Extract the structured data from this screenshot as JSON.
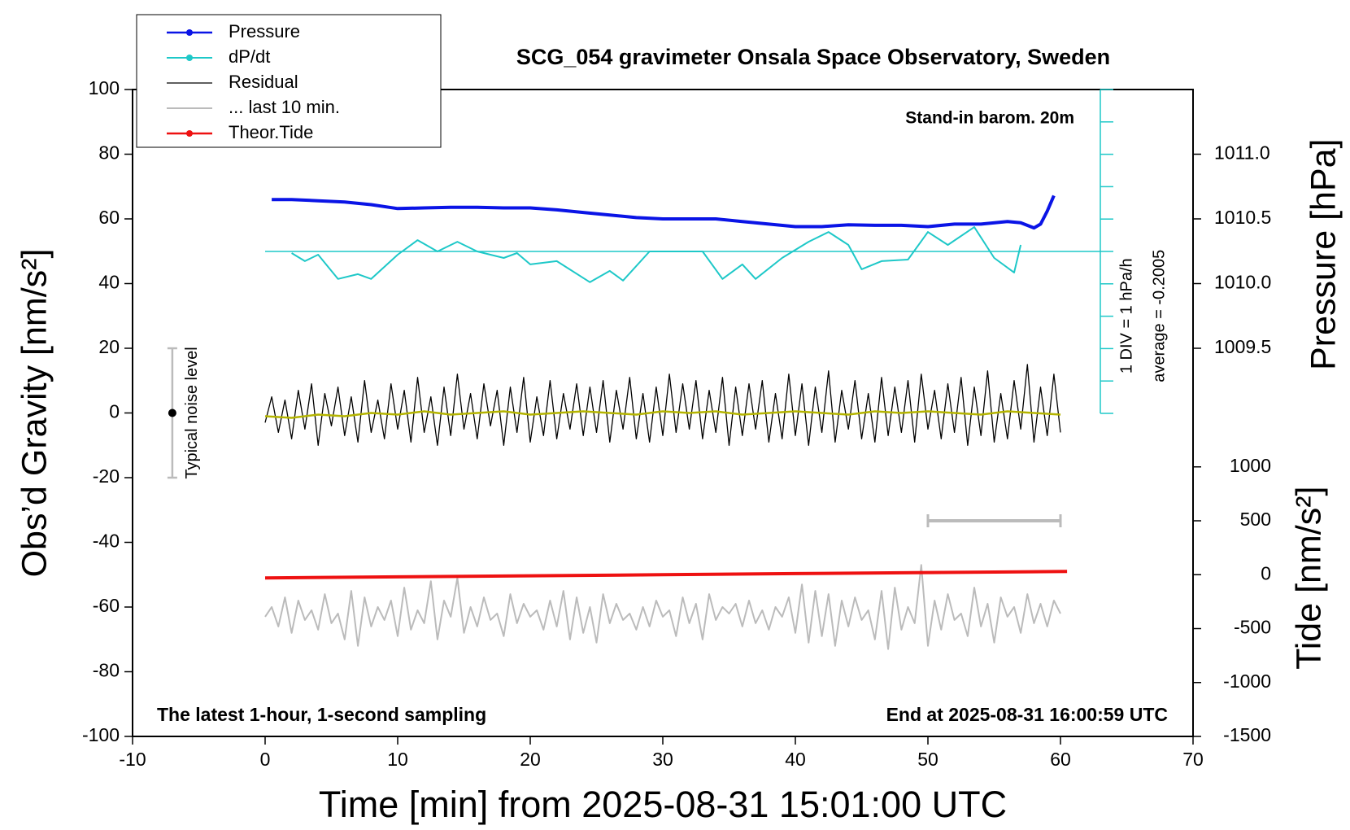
{
  "chart_data": {
    "type": "line",
    "title": "SCG_054 gravimeter Onsala Space Observatory, Sweden",
    "x_label": "Time [min] from 2025-08-31 15:01:00 UTC",
    "y_label": "Obs’d Gravity [nm/s²]",
    "y2_label": "Pressure [hPa]",
    "y3_label": "Tide [nm/s²]",
    "annotations": {
      "barometer": "Stand-in barom. 20m",
      "div": "1 DIV = 1 hPa/h",
      "average": "average = -0.2005",
      "sampling": "The latest 1-hour, 1-second sampling",
      "end": "End at 2025-08-31 16:00:59 UTC"
    },
    "legend": "upper left",
    "xlim": [
      -10,
      70
    ],
    "xticks": [
      -10,
      0,
      10,
      20,
      30,
      40,
      50,
      60,
      70
    ],
    "ylim": [
      -100,
      100
    ],
    "yticks": [
      -100,
      -80,
      -60,
      -40,
      -20,
      0,
      20,
      40,
      60,
      80,
      100
    ],
    "y2lim": [
      1006.5,
      1011.5
    ],
    "y2ticks": [
      1009.5,
      {
        "value": 1010,
        "label": "1010.0"
      },
      1010.5,
      {
        "value": 1011,
        "label": "1011.0"
      }
    ],
    "y3lim": [
      -1500,
      4500
    ],
    "y3ticks": [
      -1500,
      -1000,
      -500,
      0,
      500,
      1000
    ],
    "y4lim": [
      -5,
      5
    ],
    "y4ticks": [
      -5,
      -4,
      -3,
      -2,
      -1,
      0,
      1,
      2,
      3,
      4,
      5
    ],
    "x": [
      0,
      0.5,
      1,
      1.5,
      2,
      2.5,
      3,
      3.5,
      4,
      4.5,
      5,
      5.5,
      6,
      6.5,
      7,
      7.5,
      8,
      8.5,
      9,
      9.5,
      10,
      10.5,
      11,
      11.5,
      12,
      12.5,
      13,
      13.5,
      14,
      14.5,
      15,
      15.5,
      16,
      16.5,
      17,
      17.5,
      18,
      18.5,
      19,
      19.5,
      20,
      20.5,
      21,
      21.5,
      22,
      22.5,
      23,
      23.5,
      24,
      24.5,
      25,
      25.5,
      26,
      26.5,
      27,
      27.5,
      28,
      28.5,
      29,
      29.5,
      30,
      30.5,
      31,
      31.5,
      32,
      32.5,
      33,
      33.5,
      34,
      34.5,
      35,
      35.5,
      36,
      36.5,
      37,
      37.5,
      38,
      38.5,
      39,
      39.5,
      40,
      40.5,
      41,
      41.5,
      42,
      42.5,
      43,
      43.5,
      44,
      44.5,
      45,
      45.5,
      46,
      46.5,
      47,
      47.5,
      48,
      48.5,
      49,
      49.5,
      50,
      50.5,
      51,
      51.5,
      52,
      52.5,
      53,
      53.5,
      54,
      54.5,
      55,
      55.5,
      56,
      56.5,
      57,
      57.5,
      58,
      58.5,
      59,
      59.5,
      60
    ],
    "series": [
      {
        "name": "Pressure",
        "color": "#0a14e6",
        "axis": "y2",
        "marker": true,
        "width": 4,
        "x": [
          0.5,
          2,
          4,
          6,
          8,
          10,
          12,
          14,
          16,
          18,
          20,
          22,
          24,
          26,
          28,
          30,
          32,
          34,
          36,
          38,
          40,
          42,
          44,
          46,
          48,
          50,
          52,
          54,
          56,
          57,
          58,
          58.5,
          59,
          59.5
        ],
        "values": [
          1010.65,
          1010.65,
          1010.64,
          1010.63,
          1010.61,
          1010.58,
          1010.585,
          1010.59,
          1010.59,
          1010.585,
          1010.585,
          1010.57,
          1010.55,
          1010.53,
          1010.51,
          1010.5,
          1010.5,
          1010.5,
          1010.48,
          1010.46,
          1010.44,
          1010.44,
          1010.455,
          1010.45,
          1010.45,
          1010.44,
          1010.46,
          1010.46,
          1010.48,
          1010.47,
          1010.43,
          1010.46,
          1010.56,
          1010.68
        ]
      },
      {
        "name": "dP/dt",
        "color": "#1ec8c8",
        "axis": "y4",
        "marker": true,
        "width": 2,
        "x": [
          2,
          3,
          4,
          5.5,
          7,
          8,
          10,
          11.5,
          13,
          14.5,
          16,
          18,
          19,
          20,
          22,
          24.5,
          26,
          27,
          29,
          31,
          33,
          34.5,
          36,
          37,
          39,
          41,
          42.5,
          44,
          45,
          46.5,
          48.5,
          50,
          51.5,
          53.5,
          55,
          56.5,
          57
        ],
        "values": [
          -0.05,
          -0.3,
          -0.1,
          -0.85,
          -0.7,
          -0.85,
          -0.1,
          0.35,
          0,
          0.3,
          0,
          -0.2,
          -0.05,
          -0.4,
          -0.3,
          -0.95,
          -0.6,
          -0.9,
          0,
          0,
          0,
          -0.85,
          -0.4,
          -0.85,
          -0.2,
          0.3,
          0.6,
          0.2,
          -0.55,
          -0.3,
          -0.25,
          0.6,
          0.2,
          0.75,
          -0.2,
          -0.65,
          0.2
        ]
      },
      {
        "name": "Residual",
        "color": "#000000",
        "width": 1.3,
        "values": [
          -3,
          5,
          -6,
          4,
          -8,
          7,
          -5,
          9,
          -10,
          6,
          -4,
          8,
          -7,
          5,
          -9,
          10,
          -6,
          4,
          -8,
          9,
          -5,
          7,
          -9,
          11,
          -6,
          5,
          -10,
          8,
          -7,
          12,
          -5,
          6,
          -8,
          9,
          -4,
          7,
          -10,
          8,
          -6,
          11,
          -9,
          5,
          -7,
          10,
          -8,
          6,
          -5,
          9,
          -7,
          8,
          -6,
          10,
          -9,
          7,
          -5,
          11,
          -8,
          6,
          -9,
          8,
          -7,
          12,
          -6,
          9,
          -5,
          10,
          -8,
          7,
          -6,
          11,
          -10,
          8,
          -7,
          9,
          -5,
          10,
          -9,
          6,
          -8,
          12,
          -7,
          9,
          -10,
          8,
          -6,
          13,
          -9,
          7,
          -5,
          10,
          -8,
          6,
          -9,
          11,
          -7,
          8,
          -6,
          10,
          -9,
          12,
          -5,
          7,
          -8,
          9,
          -6,
          11,
          -10,
          8,
          -7,
          13,
          -9,
          6,
          -8,
          10,
          -5,
          15,
          -9,
          8,
          -7,
          12,
          -6
        ]
      },
      {
        "name": "... last 10 min.",
        "color": "#bbbbbb",
        "width": 2,
        "values": [
          -63,
          -60,
          -66,
          -57,
          -68,
          -58,
          -64,
          -61,
          -67,
          -56,
          -65,
          -62,
          -70,
          -55,
          -72,
          -57,
          -66,
          -60,
          -64,
          -58,
          -69,
          -54,
          -67,
          -61,
          -65,
          -52,
          -70,
          -58,
          -63,
          -51,
          -68,
          -60,
          -66,
          -57,
          -64,
          -62,
          -69,
          -56,
          -65,
          -59,
          -63,
          -61,
          -67,
          -58,
          -66,
          -55,
          -70,
          -57,
          -68,
          -60,
          -71,
          -56,
          -65,
          -59,
          -64,
          -62,
          -67,
          -60,
          -66,
          -58,
          -63,
          -61,
          -69,
          -57,
          -65,
          -59,
          -70,
          -56,
          -64,
          -60,
          -62,
          -59,
          -66,
          -58,
          -65,
          -61,
          -67,
          -60,
          -63,
          -57,
          -68,
          -53,
          -71,
          -55,
          -69,
          -56,
          -72,
          -58,
          -66,
          -57,
          -64,
          -61,
          -70,
          -55,
          -73,
          -54,
          -67,
          -60,
          -65,
          -47,
          -72,
          -58,
          -67,
          -56,
          -64,
          -62,
          -69,
          -54,
          -66,
          -59,
          -71,
          -57,
          -63,
          -60,
          -68,
          -56,
          -65,
          -59,
          -66,
          -58,
          -62
        ]
      },
      {
        "name": "Theor.Tide",
        "color": "#ee1111",
        "axis": "y3",
        "marker": true,
        "width": 4,
        "x": [
          0,
          10,
          20,
          30,
          40,
          50,
          60.5
        ],
        "values": [
          -30,
          -20,
          -10,
          0,
          10,
          20,
          30
        ]
      },
      {
        "color": "#b4b400",
        "width": 2.5,
        "x": [
          0,
          2,
          4,
          6,
          8,
          10,
          12,
          14,
          16,
          18,
          20,
          22,
          24,
          26,
          28,
          30,
          32,
          34,
          36,
          38,
          40,
          42,
          44,
          46,
          48,
          50,
          52,
          54,
          56,
          58,
          60
        ],
        "values": [
          -1,
          -1.5,
          -0.5,
          -1,
          0,
          -0.5,
          0.5,
          -0.5,
          0,
          0.5,
          -0.5,
          0,
          0.5,
          0,
          -0.5,
          0.5,
          0,
          0.5,
          -0.5,
          0,
          0.5,
          0,
          -0.5,
          0.5,
          0,
          0.5,
          0,
          -0.5,
          0.5,
          0,
          -0.5
        ]
      }
    ],
    "noise": {
      "label": "Typical noise level",
      "x": -7,
      "value": 0,
      "error": 20
    },
    "last10_bar": {
      "x": [
        50,
        60
      ],
      "y": 500
    }
  }
}
